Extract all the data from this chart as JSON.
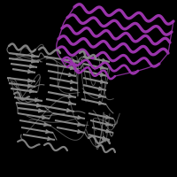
{
  "background_color": "#000000",
  "figure_width": 2.0,
  "figure_height": 2.0,
  "dpi": 100,
  "purple": "#9933aa",
  "gray": "#888888",
  "gray_light": "#aaaaaa",
  "gray_dark": "#555555",
  "purple_dark": "#771188",
  "purple_light": "#bb55cc",
  "helix_lw": 2.2,
  "strand_lw": 1.5,
  "loop_lw": 0.8
}
